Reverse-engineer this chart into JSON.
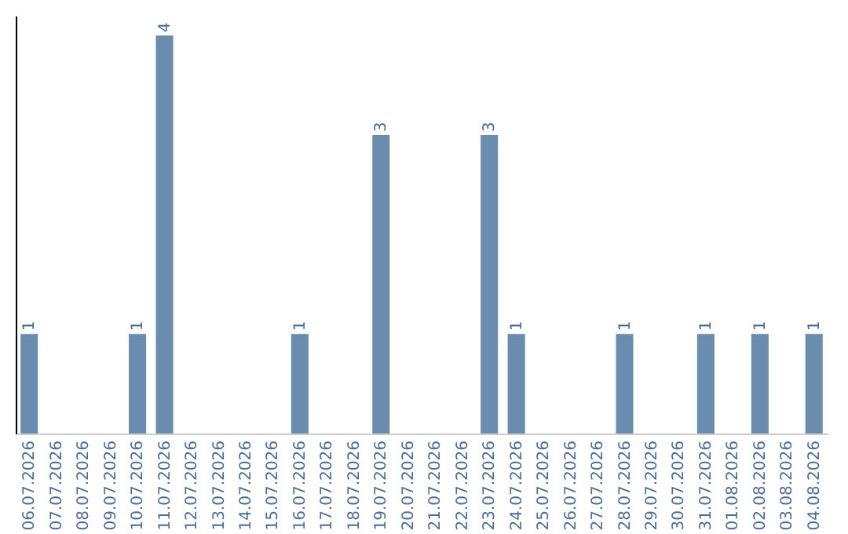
{
  "chart_data": {
    "type": "bar",
    "categories": [
      "06.07.2026",
      "07.07.2026",
      "08.07.2026",
      "09.07.2026",
      "10.07.2026",
      "11.07.2026",
      "12.07.2026",
      "13.07.2026",
      "14.07.2026",
      "15.07.2026",
      "16.07.2026",
      "17.07.2026",
      "18.07.2026",
      "19.07.2026",
      "20.07.2026",
      "21.07.2026",
      "22.07.2026",
      "23.07.2026",
      "24.07.2026",
      "25.07.2026",
      "26.07.2026",
      "27.07.2026",
      "28.07.2026",
      "29.07.2026",
      "30.07.2026",
      "31.07.2026",
      "01.08.2026",
      "02.08.2026",
      "03.08.2026",
      "04.08.2026"
    ],
    "values": [
      1,
      0,
      0,
      0,
      1,
      4,
      0,
      0,
      0,
      0,
      1,
      0,
      0,
      3,
      0,
      0,
      0,
      3,
      1,
      0,
      0,
      0,
      1,
      0,
      0,
      1,
      0,
      1,
      0,
      1
    ],
    "value_labels": [
      "1",
      null,
      null,
      null,
      "1",
      "4",
      null,
      null,
      null,
      null,
      "1",
      null,
      null,
      "3",
      null,
      null,
      null,
      "3",
      "1",
      null,
      null,
      null,
      "1",
      null,
      null,
      "1",
      null,
      "1",
      null,
      "1"
    ],
    "color": "#6a8caf",
    "ylim": [
      0,
      4.2
    ],
    "tick_labels": "x",
    "grid": false
  }
}
